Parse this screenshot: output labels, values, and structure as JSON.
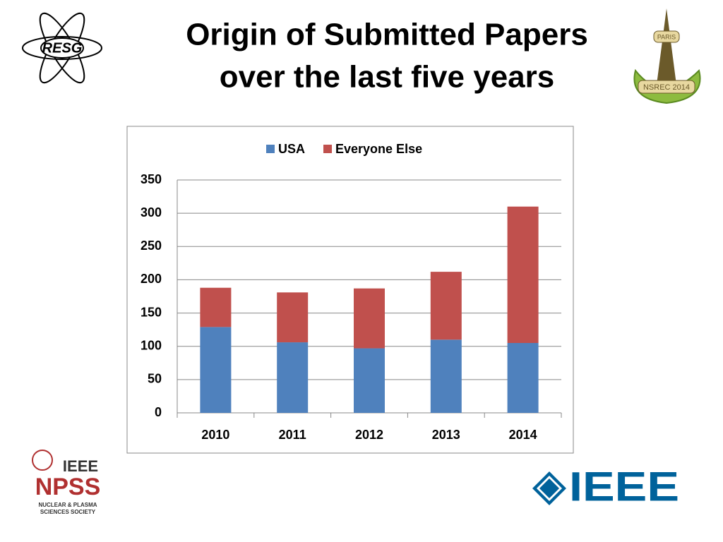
{
  "chart_data": {
    "type": "stacked-bar",
    "title": [
      "Origin of Submitted Papers",
      "over the last five years"
    ],
    "categories": [
      "2010",
      "2011",
      "2012",
      "2013",
      "2014"
    ],
    "series": [
      {
        "name": "USA",
        "color": "#4f81bd",
        "values": [
          129,
          106,
          97,
          110,
          105
        ]
      },
      {
        "name": "Everyone Else",
        "color": "#c0504d",
        "values": [
          59,
          75,
          90,
          102,
          205
        ]
      }
    ],
    "ylim": [
      0,
      350
    ],
    "yticks": [
      0,
      50,
      100,
      150,
      200,
      250,
      300,
      350
    ],
    "grid": true,
    "legend": "top"
  },
  "logos": {
    "resg": "RESG",
    "npss": {
      "ieee": "IEEE",
      "name": "NPSS",
      "society": [
        "NUCLEAR & PLASMA",
        "SCIENCES SOCIETY"
      ]
    },
    "ieee": "IEEE",
    "nsrec": {
      "city": "PARIS",
      "name": "NSREC 2014"
    }
  }
}
